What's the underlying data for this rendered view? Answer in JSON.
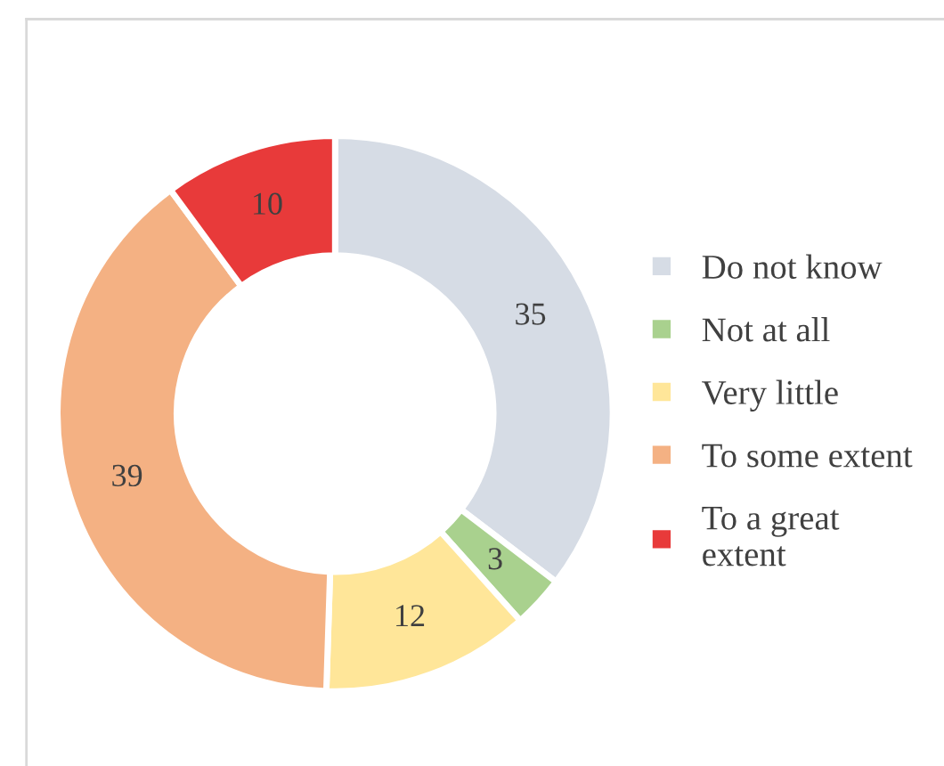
{
  "chart_data": {
    "type": "donut",
    "categories": [
      "Do not know",
      "Not at all",
      "Very little",
      "To some extent",
      "To a great extent"
    ],
    "values": [
      35,
      3,
      12,
      39,
      10
    ],
    "colors": [
      "#d6dce5",
      "#a9d18e",
      "#ffe699",
      "#f4b183",
      "#e83a3a"
    ],
    "data_labels": true,
    "legend": "right"
  }
}
